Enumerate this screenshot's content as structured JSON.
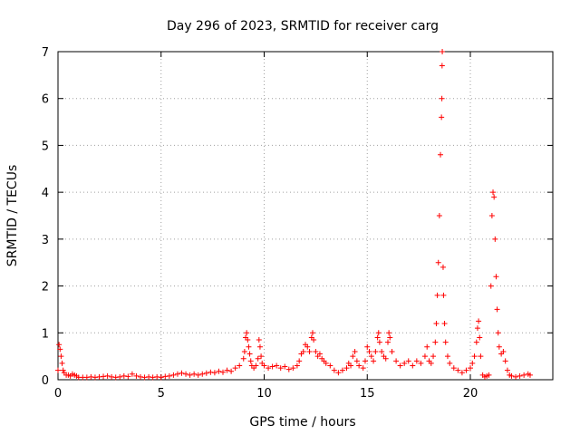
{
  "chart_data": {
    "type": "scatter",
    "title": "Day 296 of 2023, SRMTID for receiver carg",
    "xlabel": "GPS time / hours",
    "ylabel": "SRMTID / TECUs",
    "xlim": [
      0,
      24
    ],
    "ylim": [
      0,
      7
    ],
    "xticks": [
      0,
      5,
      10,
      15,
      20
    ],
    "yticks": [
      0,
      1,
      2,
      3,
      4,
      5,
      6,
      7
    ],
    "grid": true,
    "marker": "+",
    "color": "#ff0000",
    "series": [
      {
        "name": "SRMTID",
        "points": [
          [
            0.0,
            0.2
          ],
          [
            0.05,
            0.75
          ],
          [
            0.1,
            0.65
          ],
          [
            0.15,
            0.5
          ],
          [
            0.2,
            0.35
          ],
          [
            0.25,
            0.2
          ],
          [
            0.3,
            0.15
          ],
          [
            0.4,
            0.1
          ],
          [
            0.5,
            0.1
          ],
          [
            0.6,
            0.08
          ],
          [
            0.7,
            0.12
          ],
          [
            0.8,
            0.1
          ],
          [
            0.9,
            0.08
          ],
          [
            1.0,
            0.05
          ],
          [
            1.2,
            0.05
          ],
          [
            1.4,
            0.05
          ],
          [
            1.6,
            0.06
          ],
          [
            1.8,
            0.05
          ],
          [
            2.0,
            0.06
          ],
          [
            2.2,
            0.07
          ],
          [
            2.4,
            0.08
          ],
          [
            2.6,
            0.06
          ],
          [
            2.8,
            0.05
          ],
          [
            3.0,
            0.06
          ],
          [
            3.2,
            0.08
          ],
          [
            3.4,
            0.07
          ],
          [
            3.6,
            0.12
          ],
          [
            3.8,
            0.08
          ],
          [
            4.0,
            0.06
          ],
          [
            4.2,
            0.05
          ],
          [
            4.4,
            0.06
          ],
          [
            4.6,
            0.05
          ],
          [
            4.8,
            0.06
          ],
          [
            5.0,
            0.05
          ],
          [
            5.2,
            0.07
          ],
          [
            5.4,
            0.08
          ],
          [
            5.6,
            0.1
          ],
          [
            5.8,
            0.12
          ],
          [
            6.0,
            0.14
          ],
          [
            6.2,
            0.12
          ],
          [
            6.4,
            0.1
          ],
          [
            6.6,
            0.12
          ],
          [
            6.8,
            0.1
          ],
          [
            7.0,
            0.12
          ],
          [
            7.2,
            0.14
          ],
          [
            7.4,
            0.16
          ],
          [
            7.6,
            0.15
          ],
          [
            7.8,
            0.18
          ],
          [
            8.0,
            0.16
          ],
          [
            8.2,
            0.2
          ],
          [
            8.4,
            0.18
          ],
          [
            8.6,
            0.25
          ],
          [
            8.8,
            0.3
          ],
          [
            9.0,
            0.45
          ],
          [
            9.05,
            0.6
          ],
          [
            9.1,
            0.9
          ],
          [
            9.15,
            1.0
          ],
          [
            9.2,
            0.85
          ],
          [
            9.25,
            0.7
          ],
          [
            9.3,
            0.55
          ],
          [
            9.35,
            0.4
          ],
          [
            9.4,
            0.3
          ],
          [
            9.5,
            0.25
          ],
          [
            9.6,
            0.3
          ],
          [
            9.7,
            0.45
          ],
          [
            9.75,
            0.85
          ],
          [
            9.8,
            0.7
          ],
          [
            9.85,
            0.5
          ],
          [
            9.9,
            0.35
          ],
          [
            10.0,
            0.3
          ],
          [
            10.2,
            0.25
          ],
          [
            10.4,
            0.28
          ],
          [
            10.6,
            0.3
          ],
          [
            10.8,
            0.25
          ],
          [
            11.0,
            0.28
          ],
          [
            11.2,
            0.22
          ],
          [
            11.4,
            0.25
          ],
          [
            11.6,
            0.3
          ],
          [
            11.7,
            0.4
          ],
          [
            11.8,
            0.55
          ],
          [
            11.9,
            0.6
          ],
          [
            12.0,
            0.75
          ],
          [
            12.1,
            0.7
          ],
          [
            12.2,
            0.6
          ],
          [
            12.3,
            0.9
          ],
          [
            12.35,
            1.0
          ],
          [
            12.4,
            0.85
          ],
          [
            12.5,
            0.6
          ],
          [
            12.6,
            0.5
          ],
          [
            12.7,
            0.55
          ],
          [
            12.8,
            0.45
          ],
          [
            12.9,
            0.4
          ],
          [
            13.0,
            0.35
          ],
          [
            13.2,
            0.3
          ],
          [
            13.4,
            0.2
          ],
          [
            13.6,
            0.15
          ],
          [
            13.8,
            0.2
          ],
          [
            14.0,
            0.25
          ],
          [
            14.1,
            0.35
          ],
          [
            14.2,
            0.3
          ],
          [
            14.3,
            0.5
          ],
          [
            14.4,
            0.6
          ],
          [
            14.5,
            0.4
          ],
          [
            14.6,
            0.3
          ],
          [
            14.8,
            0.25
          ],
          [
            14.9,
            0.4
          ],
          [
            15.0,
            0.7
          ],
          [
            15.1,
            0.6
          ],
          [
            15.2,
            0.5
          ],
          [
            15.3,
            0.4
          ],
          [
            15.4,
            0.6
          ],
          [
            15.5,
            0.9
          ],
          [
            15.55,
            1.0
          ],
          [
            15.6,
            0.8
          ],
          [
            15.7,
            0.6
          ],
          [
            15.8,
            0.5
          ],
          [
            15.9,
            0.45
          ],
          [
            16.0,
            0.8
          ],
          [
            16.05,
            1.0
          ],
          [
            16.1,
            0.9
          ],
          [
            16.2,
            0.6
          ],
          [
            16.4,
            0.4
          ],
          [
            16.6,
            0.3
          ],
          [
            16.8,
            0.35
          ],
          [
            17.0,
            0.4
          ],
          [
            17.2,
            0.3
          ],
          [
            17.4,
            0.4
          ],
          [
            17.6,
            0.35
          ],
          [
            17.8,
            0.5
          ],
          [
            17.9,
            0.7
          ],
          [
            18.0,
            0.4
          ],
          [
            18.1,
            0.35
          ],
          [
            18.2,
            0.5
          ],
          [
            18.3,
            0.8
          ],
          [
            18.35,
            1.2
          ],
          [
            18.4,
            1.8
          ],
          [
            18.45,
            2.5
          ],
          [
            18.5,
            3.5
          ],
          [
            18.55,
            4.8
          ],
          [
            18.6,
            5.6
          ],
          [
            18.62,
            6.0
          ],
          [
            18.63,
            6.7
          ],
          [
            18.64,
            7.0
          ],
          [
            18.68,
            2.4
          ],
          [
            18.7,
            1.8
          ],
          [
            18.75,
            1.2
          ],
          [
            18.8,
            0.8
          ],
          [
            18.9,
            0.5
          ],
          [
            19.0,
            0.35
          ],
          [
            19.2,
            0.25
          ],
          [
            19.4,
            0.2
          ],
          [
            19.6,
            0.15
          ],
          [
            19.8,
            0.2
          ],
          [
            20.0,
            0.25
          ],
          [
            20.1,
            0.35
          ],
          [
            20.2,
            0.5
          ],
          [
            20.3,
            0.8
          ],
          [
            20.35,
            1.1
          ],
          [
            20.4,
            1.25
          ],
          [
            20.45,
            0.9
          ],
          [
            20.5,
            0.5
          ],
          [
            20.6,
            0.1
          ],
          [
            20.7,
            0.06
          ],
          [
            20.8,
            0.08
          ],
          [
            20.9,
            0.1
          ],
          [
            21.0,
            2.0
          ],
          [
            21.05,
            3.5
          ],
          [
            21.1,
            4.0
          ],
          [
            21.15,
            3.9
          ],
          [
            21.2,
            3.0
          ],
          [
            21.25,
            2.2
          ],
          [
            21.3,
            1.5
          ],
          [
            21.35,
            1.0
          ],
          [
            21.4,
            0.7
          ],
          [
            21.5,
            0.55
          ],
          [
            21.6,
            0.6
          ],
          [
            21.7,
            0.4
          ],
          [
            21.8,
            0.2
          ],
          [
            21.9,
            0.1
          ],
          [
            22.0,
            0.08
          ],
          [
            22.2,
            0.06
          ],
          [
            22.4,
            0.08
          ],
          [
            22.6,
            0.1
          ],
          [
            22.8,
            0.12
          ],
          [
            22.9,
            0.1
          ]
        ]
      }
    ]
  }
}
